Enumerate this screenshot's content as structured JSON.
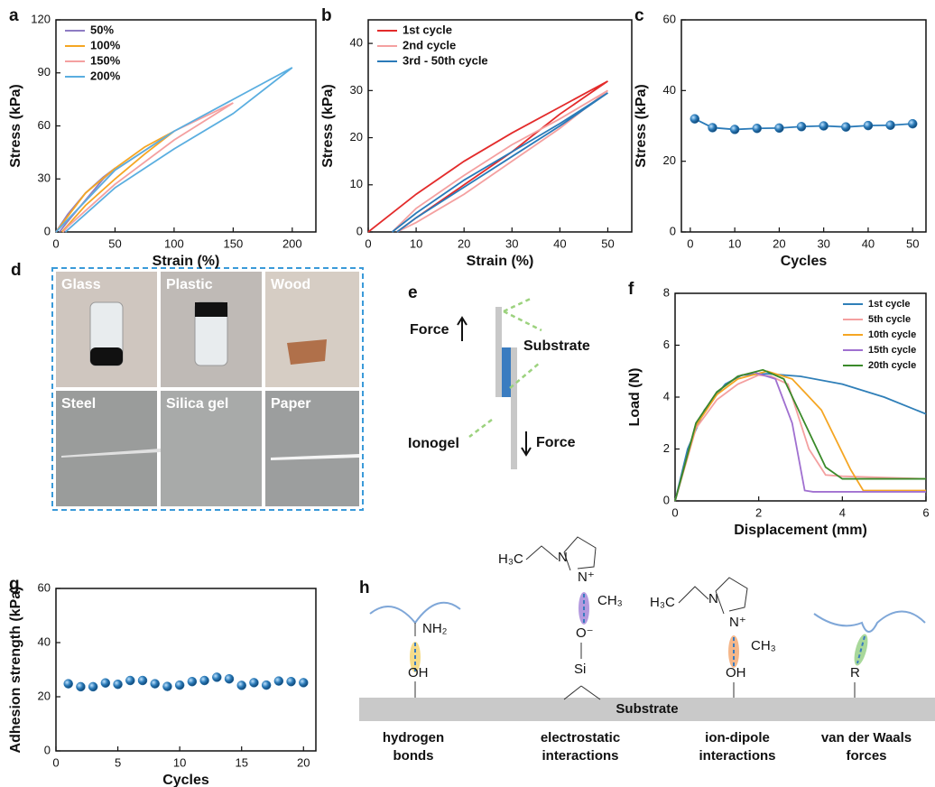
{
  "chart_data": [
    {
      "panel": "a",
      "type": "line",
      "xlabel": "Strain (%)",
      "ylabel": "Stress (kPa)",
      "xlim": [
        0,
        220
      ],
      "xticks": [
        0,
        50,
        100,
        150,
        200
      ],
      "ylim": [
        0,
        120
      ],
      "yticks": [
        0,
        30,
        60,
        90,
        120
      ],
      "legend": "upper left",
      "series": [
        {
          "name": "50%",
          "color": "#8e7cc3",
          "x": [
            0,
            10,
            25,
            40,
            50,
            40,
            25,
            10,
            3
          ],
          "values": [
            0,
            10,
            22,
            31,
            36,
            30,
            18,
            6,
            0
          ]
        },
        {
          "name": "100%",
          "color": "#f5a623",
          "x": [
            0,
            25,
            50,
            75,
            100,
            75,
            50,
            25,
            5
          ],
          "values": [
            0,
            22,
            36,
            48,
            57,
            44,
            30,
            15,
            0
          ]
        },
        {
          "name": "150%",
          "color": "#f4a0a0",
          "x": [
            0,
            50,
            100,
            125,
            150,
            100,
            50,
            10,
            6
          ],
          "values": [
            0,
            35,
            57,
            65,
            73,
            52,
            27,
            3,
            0
          ]
        },
        {
          "name": "200%",
          "color": "#5aaee0",
          "x": [
            0,
            50,
            100,
            150,
            200,
            150,
            100,
            50,
            8
          ],
          "values": [
            0,
            35,
            57,
            75,
            93,
            67,
            47,
            25,
            0
          ]
        }
      ]
    },
    {
      "panel": "b",
      "type": "line",
      "xlabel": "Strain (%)",
      "ylabel": "Stress (kPa)",
      "xlim": [
        0,
        55
      ],
      "xticks": [
        0,
        10,
        20,
        30,
        40,
        50
      ],
      "ylim": [
        0,
        45
      ],
      "yticks": [
        0,
        10,
        20,
        30,
        40
      ],
      "legend": "upper left",
      "series": [
        {
          "name": "1st cycle",
          "color": "#e32b2b",
          "x": [
            0,
            10,
            20,
            30,
            40,
            50,
            45,
            40,
            30,
            20,
            10,
            6
          ],
          "values": [
            0,
            8,
            15,
            21,
            26.5,
            32,
            28.5,
            25,
            17,
            10,
            3,
            0
          ]
        },
        {
          "name": "2nd cycle",
          "color": "#f4a0a0",
          "x": [
            5,
            10,
            20,
            30,
            40,
            50,
            40,
            30,
            20,
            10,
            6
          ],
          "values": [
            0,
            5,
            12,
            18.5,
            24,
            30,
            22,
            15,
            8,
            2,
            0
          ]
        },
        {
          "name": "3rd - 50th cycle",
          "color": "#2a7ab8",
          "x": [
            5,
            10,
            20,
            30,
            40,
            50,
            40,
            30,
            20,
            10,
            6
          ],
          "values": [
            0,
            4,
            11,
            17,
            23,
            29.5,
            22.5,
            16,
            9.5,
            3,
            0
          ]
        }
      ]
    },
    {
      "panel": "c",
      "type": "line",
      "markers": true,
      "xlabel": "Cycles",
      "ylabel": "Stress (kPa)",
      "xlim": [
        -2,
        53
      ],
      "xticks": [
        0,
        10,
        20,
        30,
        40,
        50
      ],
      "ylim": [
        0,
        60
      ],
      "yticks": [
        0,
        20,
        40,
        60
      ],
      "x": [
        1,
        5,
        10,
        15,
        20,
        25,
        30,
        35,
        40,
        45,
        50
      ],
      "series": [
        {
          "color": "#2a7ab8",
          "values": [
            32,
            29.5,
            29,
            29.3,
            29.4,
            29.8,
            30,
            29.7,
            30.1,
            30.2,
            30.6
          ]
        }
      ]
    },
    {
      "panel": "f",
      "type": "line",
      "xlabel": "Displacement (mm)",
      "ylabel": "Load (N)",
      "xlim": [
        0,
        6
      ],
      "xticks": [
        0,
        2,
        4,
        6
      ],
      "ylim": [
        0,
        8
      ],
      "yticks": [
        0,
        2,
        4,
        6,
        8
      ],
      "legend": "upper right",
      "series": [
        {
          "name": "1st cycle",
          "color": "#2f7fb8",
          "x": [
            0,
            0.3,
            0.7,
            1.2,
            1.6,
            2.2,
            3,
            4,
            5,
            6
          ],
          "values": [
            0,
            2,
            3.5,
            4.5,
            4.85,
            4.9,
            4.8,
            4.5,
            4,
            3.35
          ]
        },
        {
          "name": "5th cycle",
          "color": "#f4a0a0",
          "x": [
            0,
            0.5,
            1,
            1.5,
            2,
            2.3,
            2.7,
            3.2,
            3.6,
            4,
            6
          ],
          "values": [
            0,
            2.8,
            3.9,
            4.5,
            4.85,
            4.8,
            4.5,
            2,
            1,
            0.95,
            0.85
          ]
        },
        {
          "name": "10th cycle",
          "color": "#f5a623",
          "x": [
            0,
            0.5,
            1,
            1.5,
            2.2,
            2.8,
            3.5,
            4.2,
            4.5,
            6
          ],
          "values": [
            0,
            2.9,
            4.1,
            4.7,
            5,
            4.7,
            3.5,
            1.2,
            0.4,
            0.4
          ]
        },
        {
          "name": "15th cycle",
          "color": "#a070d0",
          "x": [
            0,
            0.5,
            1,
            1.5,
            1.9,
            2.4,
            2.8,
            3.1,
            3.3,
            6
          ],
          "values": [
            0,
            3,
            4.2,
            4.8,
            4.95,
            4.7,
            3,
            0.4,
            0.35,
            0.35
          ]
        },
        {
          "name": "20th cycle",
          "color": "#3a8a2a",
          "x": [
            0,
            0.5,
            1,
            1.5,
            2.1,
            2.6,
            3.1,
            3.6,
            4,
            6
          ],
          "values": [
            0,
            3,
            4.2,
            4.8,
            5.05,
            4.7,
            3,
            1.3,
            0.85,
            0.85
          ]
        }
      ]
    },
    {
      "panel": "g",
      "type": "scatter",
      "xlabel": "Cycles",
      "ylabel": "Adhesion strength (kPa)",
      "xlim": [
        0,
        21
      ],
      "xticks": [
        0,
        5,
        10,
        15,
        20
      ],
      "ylim": [
        0,
        60
      ],
      "yticks": [
        0,
        20,
        40,
        60
      ],
      "color": "#2a7ab8",
      "x": [
        1,
        2,
        3,
        4,
        5,
        6,
        7,
        8,
        9,
        10,
        11,
        12,
        13,
        14,
        15,
        16,
        17,
        18,
        19,
        20
      ],
      "values": [
        24.8,
        23.7,
        23.7,
        25.1,
        24.6,
        26,
        26,
        24.8,
        23.8,
        24.3,
        25.6,
        26,
        27.2,
        26.6,
        24.2,
        25.2,
        24.3,
        25.8,
        25.6,
        25.2
      ]
    }
  ],
  "photos": {
    "panel": "d",
    "cells": [
      "Glass",
      "Plastic",
      "Wood",
      "Steel",
      "Silica gel",
      "Paper"
    ]
  },
  "diagram_e": {
    "panel": "e",
    "force_up": "Force",
    "substrate": "Substrate",
    "ionogel": "Ionogel",
    "force_down": "Force"
  },
  "diagram_h": {
    "panel": "h",
    "substrate": "Substrate",
    "groups": [
      "NH₂",
      "OH",
      "H₃C",
      "N",
      "N⁺",
      "CH₃",
      "O⁻",
      "Si",
      "H₃C",
      "N",
      "N⁺",
      "CH₃",
      "OH",
      "R"
    ],
    "labels": [
      [
        "hydrogen",
        "bonds"
      ],
      [
        "electrostatic",
        "interactions"
      ],
      [
        "ion-dipole",
        "interactions"
      ],
      [
        "van der Waals",
        "forces"
      ]
    ]
  }
}
